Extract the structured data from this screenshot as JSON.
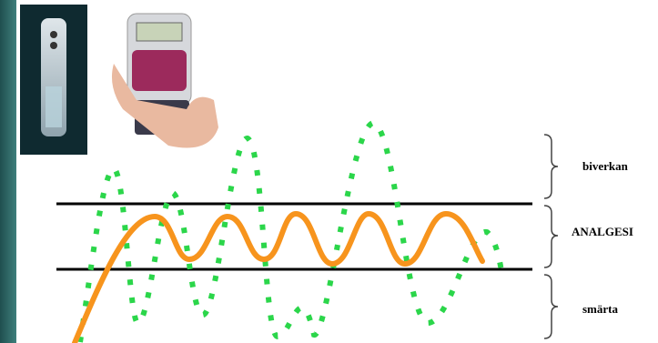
{
  "labels": {
    "top": "biverkan",
    "middle": "ANALGESI",
    "bottom": "smärta"
  }
}
